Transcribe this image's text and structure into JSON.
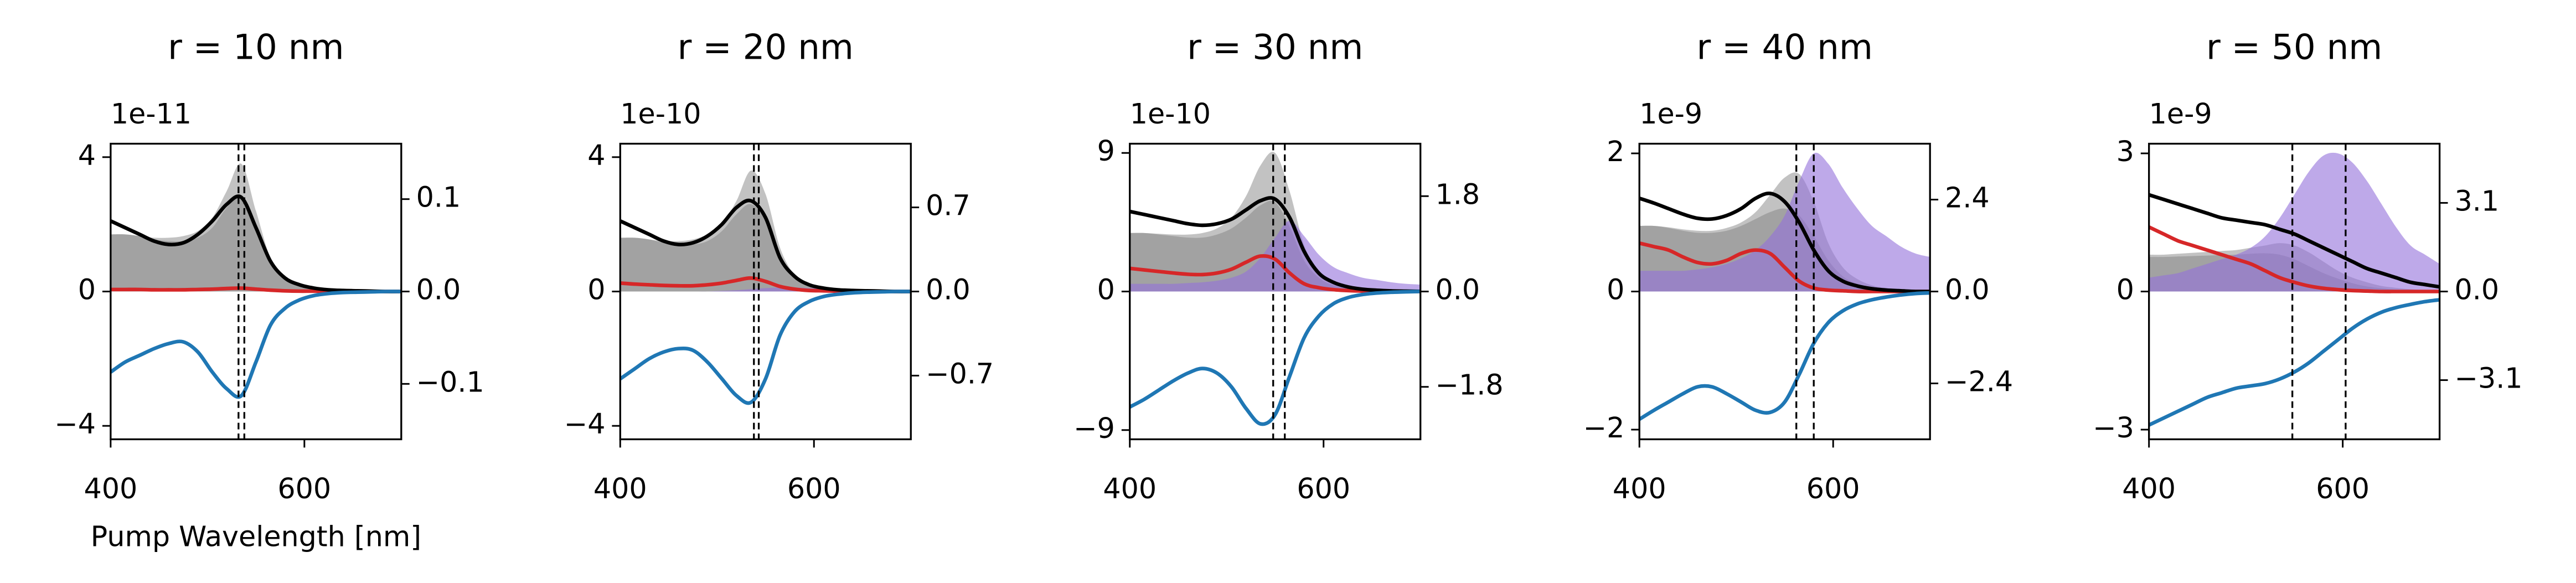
{
  "chart_data": [
    {
      "type": "line",
      "title": "r = 10 nm",
      "offset_text": "1e-11",
      "xlabel": "Pump Wavelength [nm]",
      "x": [
        400,
        415,
        430,
        445,
        460,
        475,
        490,
        505,
        520,
        535,
        550,
        565,
        580,
        595,
        610,
        625,
        640,
        655,
        670,
        685,
        700
      ],
      "xlim": [
        400,
        700
      ],
      "xticks": [
        400,
        600
      ],
      "ylim": [
        -4.4,
        4.4
      ],
      "yticks": [
        4,
        0,
        {
          "value": -4,
          "label": "−4"
        }
      ],
      "y2lim": [
        -0.16,
        0.16
      ],
      "y2ticks": [
        0.1,
        {
          "value": 0,
          "label": "0.0"
        },
        {
          "value": -0.1,
          "label": "−0.1"
        }
      ],
      "vlines": [
        532,
        538
      ],
      "series": [
        {
          "kind": "area",
          "color": "#8080807a",
          "values": [
            1.7,
            1.7,
            1.65,
            1.6,
            1.6,
            1.65,
            1.8,
            2.2,
            3.0,
            3.8,
            2.4,
            1.0,
            0.4,
            0.2,
            0.1,
            0.05,
            0.03,
            0.02,
            0.01,
            0,
            0
          ]
        },
        {
          "kind": "area",
          "color": "#8080807a",
          "values": [
            1.7,
            1.7,
            1.65,
            1.55,
            1.5,
            1.5,
            1.6,
            1.9,
            2.5,
            2.8,
            1.8,
            0.8,
            0.35,
            0.15,
            0.08,
            0.04,
            0.02,
            0.01,
            0,
            0,
            0
          ]
        },
        {
          "kind": "line",
          "color": "#d62728",
          "values": [
            0.06,
            0.06,
            0.06,
            0.05,
            0.05,
            0.05,
            0.06,
            0.07,
            0.09,
            0.1,
            0.07,
            0.04,
            0.02,
            0.01,
            0.01,
            0,
            0,
            0,
            0,
            0,
            0
          ]
        },
        {
          "kind": "line",
          "color": "#000000",
          "values": [
            2.1,
            1.9,
            1.7,
            1.5,
            1.4,
            1.45,
            1.7,
            2.1,
            2.6,
            2.8,
            1.9,
            0.9,
            0.4,
            0.2,
            0.1,
            0.05,
            0.03,
            0.02,
            0.01,
            0,
            0
          ]
        },
        {
          "kind": "line",
          "color": "#1f77b4",
          "values": [
            -2.4,
            -2.1,
            -1.9,
            -1.7,
            -1.55,
            -1.5,
            -1.8,
            -2.4,
            -2.9,
            -3.1,
            -2.1,
            -1.0,
            -0.5,
            -0.25,
            -0.12,
            -0.06,
            -0.03,
            -0.02,
            -0.01,
            0,
            0
          ]
        }
      ]
    },
    {
      "type": "line",
      "title": "r = 20 nm",
      "offset_text": "1e-10",
      "x": [
        400,
        415,
        430,
        445,
        460,
        475,
        490,
        505,
        520,
        535,
        550,
        565,
        580,
        595,
        610,
        625,
        640,
        655,
        670,
        685,
        700
      ],
      "xlim": [
        400,
        700
      ],
      "xticks": [
        400,
        600
      ],
      "ylim": [
        -4.4,
        4.4
      ],
      "yticks": [
        4,
        0,
        {
          "value": -4,
          "label": "−4"
        }
      ],
      "y2lim": [
        -1.23,
        1.23
      ],
      "y2ticks": [
        0.7,
        {
          "value": 0,
          "label": "0.0"
        },
        {
          "value": -0.7,
          "label": "−0.7"
        }
      ],
      "vlines": [
        538,
        543
      ],
      "series": [
        {
          "kind": "area",
          "color": "#8080807a",
          "values": [
            1.6,
            1.6,
            1.55,
            1.5,
            1.5,
            1.55,
            1.7,
            2.0,
            2.7,
            3.6,
            2.9,
            1.3,
            0.5,
            0.25,
            0.12,
            0.06,
            0.03,
            0.02,
            0.01,
            0,
            0
          ]
        },
        {
          "kind": "area",
          "color": "#8080807a",
          "values": [
            1.6,
            1.6,
            1.55,
            1.45,
            1.4,
            1.4,
            1.5,
            1.8,
            2.3,
            2.6,
            2.1,
            0.9,
            0.4,
            0.18,
            0.09,
            0.04,
            0.02,
            0.01,
            0,
            0,
            0
          ]
        },
        {
          "kind": "area",
          "color": "#9370db99",
          "values": [
            0,
            0,
            0,
            0,
            0,
            0,
            0,
            0.02,
            0.04,
            0.07,
            0.1,
            0.12,
            0.12,
            0.1,
            0.08,
            0.06,
            0.04,
            0.03,
            0.02,
            0.01,
            0.01
          ]
        },
        {
          "kind": "line",
          "color": "#d62728",
          "values": [
            0.25,
            0.22,
            0.2,
            0.18,
            0.17,
            0.17,
            0.2,
            0.25,
            0.33,
            0.4,
            0.3,
            0.15,
            0.07,
            0.03,
            0.02,
            0.01,
            0,
            0,
            0,
            0,
            0
          ]
        },
        {
          "kind": "line",
          "color": "#000000",
          "values": [
            2.1,
            1.9,
            1.7,
            1.5,
            1.4,
            1.45,
            1.65,
            2.0,
            2.5,
            2.7,
            2.2,
            1.0,
            0.45,
            0.2,
            0.1,
            0.05,
            0.03,
            0.02,
            0.01,
            0,
            0
          ]
        },
        {
          "kind": "line",
          "color": "#1f77b4",
          "values": [
            -2.6,
            -2.3,
            -2.0,
            -1.8,
            -1.7,
            -1.75,
            -2.1,
            -2.6,
            -3.1,
            -3.3,
            -2.6,
            -1.3,
            -0.6,
            -0.3,
            -0.15,
            -0.08,
            -0.04,
            -0.02,
            -0.01,
            0,
            0
          ]
        }
      ]
    },
    {
      "type": "line",
      "title": "r = 30 nm",
      "offset_text": "1e-10",
      "x": [
        400,
        415,
        430,
        445,
        460,
        475,
        490,
        505,
        520,
        535,
        550,
        565,
        580,
        595,
        610,
        625,
        640,
        655,
        670,
        685,
        700
      ],
      "xlim": [
        400,
        700
      ],
      "xticks": [
        400,
        600
      ],
      "ylim": [
        -9.6,
        9.6
      ],
      "yticks": [
        9,
        0,
        {
          "value": -9,
          "label": "−9"
        }
      ],
      "y2lim": [
        -2.79,
        2.79
      ],
      "y2ticks": [
        1.8,
        {
          "value": 0,
          "label": "0.0"
        },
        {
          "value": -1.8,
          "label": "−1.8"
        }
      ],
      "vlines": [
        548,
        560
      ],
      "series": [
        {
          "kind": "area",
          "color": "#8080807a",
          "values": [
            3.8,
            3.8,
            3.75,
            3.7,
            3.7,
            3.8,
            4.1,
            4.8,
            6.2,
            8.2,
            9.0,
            6.5,
            3.0,
            1.3,
            0.6,
            0.3,
            0.15,
            0.08,
            0.04,
            0.02,
            0.01
          ]
        },
        {
          "kind": "area",
          "color": "#8080807a",
          "values": [
            3.8,
            3.8,
            3.7,
            3.6,
            3.5,
            3.5,
            3.7,
            4.1,
            4.8,
            5.6,
            5.8,
            4.2,
            2.0,
            0.9,
            0.4,
            0.2,
            0.1,
            0.05,
            0.02,
            0.01,
            0
          ]
        },
        {
          "kind": "area",
          "color": "#9370db99",
          "values": [
            0.5,
            0.5,
            0.5,
            0.5,
            0.55,
            0.6,
            0.7,
            0.9,
            1.3,
            2.2,
            3.5,
            4.6,
            3.6,
            2.4,
            1.6,
            1.2,
            0.9,
            0.75,
            0.6,
            0.5,
            0.45
          ]
        },
        {
          "kind": "line",
          "color": "#d62728",
          "values": [
            1.5,
            1.4,
            1.3,
            1.2,
            1.12,
            1.1,
            1.2,
            1.45,
            1.9,
            2.3,
            2.1,
            1.2,
            0.5,
            0.25,
            0.12,
            0.06,
            0.03,
            0.02,
            0.01,
            0,
            0
          ]
        },
        {
          "kind": "line",
          "color": "#000000",
          "values": [
            5.2,
            5.0,
            4.8,
            4.6,
            4.4,
            4.3,
            4.4,
            4.7,
            5.3,
            5.9,
            6.0,
            4.8,
            2.6,
            1.2,
            0.6,
            0.3,
            0.15,
            0.08,
            0.04,
            0.02,
            0.01
          ]
        },
        {
          "kind": "line",
          "color": "#1f77b4",
          "values": [
            -7.5,
            -7.0,
            -6.4,
            -5.8,
            -5.3,
            -5.0,
            -5.3,
            -6.2,
            -7.6,
            -8.6,
            -8.0,
            -5.5,
            -3.0,
            -1.6,
            -0.8,
            -0.4,
            -0.2,
            -0.1,
            -0.05,
            -0.02,
            0
          ]
        }
      ]
    },
    {
      "type": "line",
      "title": "r = 40 nm",
      "offset_text": "1e-9",
      "x": [
        400,
        415,
        430,
        445,
        460,
        475,
        490,
        505,
        520,
        535,
        550,
        565,
        580,
        595,
        610,
        625,
        640,
        655,
        670,
        685,
        700
      ],
      "xlim": [
        400,
        700
      ],
      "xticks": [
        400,
        600
      ],
      "ylim": [
        -2.14,
        2.14
      ],
      "yticks": [
        2,
        0,
        {
          "value": -2,
          "label": "−2"
        }
      ],
      "y2lim": [
        -3.86,
        3.86
      ],
      "y2ticks": [
        2.4,
        {
          "value": 0,
          "label": "0.0"
        },
        {
          "value": -2.4,
          "label": "−2.4"
        }
      ],
      "vlines": [
        562,
        580
      ],
      "series": [
        {
          "kind": "area",
          "color": "#8080807a",
          "values": [
            0.95,
            0.95,
            0.93,
            0.9,
            0.88,
            0.88,
            0.92,
            1.0,
            1.15,
            1.4,
            1.65,
            1.7,
            1.3,
            0.7,
            0.35,
            0.18,
            0.09,
            0.05,
            0.03,
            0.02,
            0.01
          ]
        },
        {
          "kind": "area",
          "color": "#8080807a",
          "values": [
            0.95,
            0.95,
            0.92,
            0.88,
            0.85,
            0.85,
            0.88,
            0.95,
            1.05,
            1.15,
            1.2,
            1.1,
            0.8,
            0.45,
            0.22,
            0.11,
            0.06,
            0.03,
            0.02,
            0.01,
            0
          ]
        },
        {
          "kind": "area",
          "color": "#9370db99",
          "values": [
            0.3,
            0.3,
            0.3,
            0.3,
            0.32,
            0.35,
            0.4,
            0.48,
            0.6,
            0.8,
            1.1,
            1.6,
            2.0,
            1.85,
            1.5,
            1.2,
            0.95,
            0.8,
            0.65,
            0.55,
            0.5
          ]
        },
        {
          "kind": "line",
          "color": "#d62728",
          "values": [
            0.7,
            0.65,
            0.6,
            0.5,
            0.42,
            0.4,
            0.45,
            0.55,
            0.6,
            0.55,
            0.35,
            0.15,
            0.05,
            0.02,
            0.01,
            0,
            0,
            0,
            0,
            0,
            0
          ]
        },
        {
          "kind": "line",
          "color": "#000000",
          "values": [
            1.35,
            1.28,
            1.2,
            1.12,
            1.06,
            1.05,
            1.1,
            1.2,
            1.35,
            1.42,
            1.3,
            1.0,
            0.6,
            0.3,
            0.15,
            0.08,
            0.04,
            0.02,
            0.01,
            0,
            0
          ]
        },
        {
          "kind": "line",
          "color": "#1f77b4",
          "values": [
            -1.85,
            -1.72,
            -1.6,
            -1.48,
            -1.38,
            -1.38,
            -1.48,
            -1.6,
            -1.72,
            -1.75,
            -1.6,
            -1.2,
            -0.75,
            -0.45,
            -0.28,
            -0.18,
            -0.12,
            -0.08,
            -0.05,
            -0.03,
            -0.02
          ]
        }
      ]
    },
    {
      "type": "line",
      "title": "r = 50 nm",
      "offset_text": "1e-9",
      "x": [
        400,
        415,
        430,
        445,
        460,
        475,
        490,
        505,
        520,
        535,
        550,
        565,
        580,
        595,
        610,
        625,
        640,
        655,
        670,
        685,
        700
      ],
      "xlim": [
        400,
        700
      ],
      "xticks": [
        400,
        600
      ],
      "ylim": [
        -3.21,
        3.21
      ],
      "yticks": [
        3,
        0,
        {
          "value": -3,
          "label": "−3"
        }
      ],
      "y2lim": [
        -5.17,
        5.17
      ],
      "y2ticks": [
        3.1,
        {
          "value": 0,
          "label": "0.0"
        },
        {
          "value": -3.1,
          "label": "−3.1"
        }
      ],
      "vlines": [
        548,
        603
      ],
      "series": [
        {
          "kind": "area",
          "color": "#8080807a",
          "values": [
            0.8,
            0.8,
            0.82,
            0.84,
            0.86,
            0.88,
            0.9,
            0.95,
            1.0,
            1.05,
            1.0,
            0.85,
            0.65,
            0.45,
            0.3,
            0.2,
            0.12,
            0.08,
            0.05,
            0.03,
            0.02
          ]
        },
        {
          "kind": "area",
          "color": "#8080807a",
          "values": [
            0.75,
            0.75,
            0.76,
            0.77,
            0.78,
            0.79,
            0.8,
            0.82,
            0.83,
            0.8,
            0.7,
            0.55,
            0.4,
            0.28,
            0.18,
            0.11,
            0.07,
            0.04,
            0.03,
            0.02,
            0.01
          ]
        },
        {
          "kind": "area",
          "color": "#9370db99",
          "values": [
            0.3,
            0.35,
            0.4,
            0.5,
            0.6,
            0.7,
            0.8,
            0.95,
            1.2,
            1.6,
            2.1,
            2.6,
            2.95,
            3.0,
            2.8,
            2.4,
            1.9,
            1.4,
            1.0,
            0.8,
            0.6
          ]
        },
        {
          "kind": "line",
          "color": "#d62728",
          "values": [
            1.4,
            1.25,
            1.1,
            1.0,
            0.9,
            0.8,
            0.7,
            0.6,
            0.45,
            0.3,
            0.2,
            0.12,
            0.07,
            0.04,
            0.02,
            0.01,
            0,
            0,
            0,
            0,
            0
          ]
        },
        {
          "kind": "line",
          "color": "#000000",
          "values": [
            2.1,
            2.0,
            1.9,
            1.8,
            1.7,
            1.6,
            1.55,
            1.5,
            1.45,
            1.35,
            1.25,
            1.1,
            0.95,
            0.8,
            0.65,
            0.5,
            0.4,
            0.3,
            0.2,
            0.15,
            0.1
          ]
        },
        {
          "kind": "line",
          "color": "#1f77b4",
          "values": [
            -2.9,
            -2.75,
            -2.6,
            -2.45,
            -2.3,
            -2.2,
            -2.1,
            -2.05,
            -2.0,
            -1.9,
            -1.75,
            -1.55,
            -1.3,
            -1.05,
            -0.8,
            -0.6,
            -0.45,
            -0.35,
            -0.28,
            -0.22,
            -0.18
          ]
        }
      ]
    }
  ]
}
